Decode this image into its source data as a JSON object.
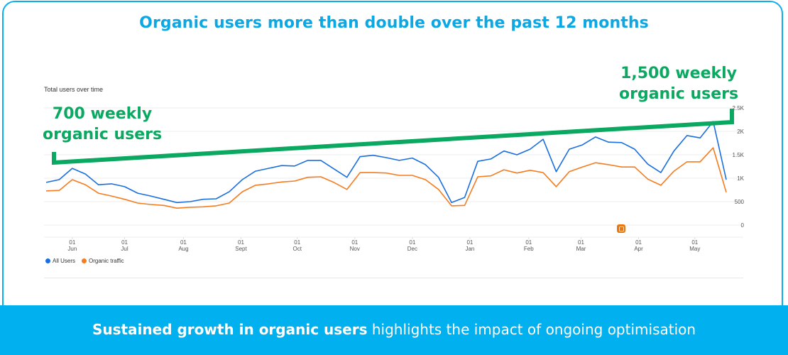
{
  "title": "Organic users more than double over the past 12 months",
  "chart_label": "Total users over time",
  "annotations": {
    "left": [
      "700 weekly",
      "organic users"
    ],
    "right": [
      "1,500 weekly",
      "organic users"
    ]
  },
  "banner": {
    "bold": "Sustained growth in organic users",
    "rest": " highlights the impact of ongoing optimisation"
  },
  "colors": {
    "accent": "#0ba8e4",
    "banner": "#00b0ef",
    "annotation_green": "#0aa860",
    "all_users": "#1a6fe0",
    "organic": "#f57c1f"
  },
  "chart_data": {
    "type": "line",
    "title": "Total users over time",
    "xlabel": "",
    "ylabel": "",
    "ylim": [
      0,
      2500
    ],
    "yticks": [
      "0",
      "500",
      "1K",
      "1.5K",
      "2K",
      "2.5K"
    ],
    "ytick_values": [
      0,
      500,
      1000,
      1500,
      2000,
      2500
    ],
    "grid": true,
    "legend_position": "bottom-left",
    "x_ticks": [
      {
        "day": "01",
        "month": "Jun",
        "index": 2
      },
      {
        "day": "01",
        "month": "Jul",
        "index": 6
      },
      {
        "day": "01",
        "month": "Aug",
        "index": 10.5
      },
      {
        "day": "01",
        "month": "Sept",
        "index": 14.9
      },
      {
        "day": "01",
        "month": "Oct",
        "index": 19.2
      },
      {
        "day": "01",
        "month": "Nov",
        "index": 23.6
      },
      {
        "day": "01",
        "month": "Dec",
        "index": 28
      },
      {
        "day": "01",
        "month": "Jan",
        "index": 32.4
      },
      {
        "day": "01",
        "month": "Feb",
        "index": 36.9
      },
      {
        "day": "01",
        "month": "Mar",
        "index": 40.9
      },
      {
        "day": "01",
        "month": "Apr",
        "index": 45.3
      },
      {
        "day": "01",
        "month": "May",
        "index": 49.6
      }
    ],
    "series": [
      {
        "name": "All Users",
        "color": "#1a6fe0",
        "values": [
          910,
          970,
          1210,
          1090,
          860,
          880,
          820,
          680,
          620,
          550,
          480,
          500,
          550,
          560,
          710,
          970,
          1150,
          1210,
          1270,
          1260,
          1380,
          1380,
          1200,
          1020,
          1460,
          1490,
          1440,
          1380,
          1430,
          1290,
          1020,
          480,
          590,
          1360,
          1410,
          1580,
          1500,
          1620,
          1830,
          1140,
          1620,
          1710,
          1880,
          1770,
          1760,
          1620,
          1300,
          1120,
          1580,
          1910,
          1860,
          2210,
          970
        ]
      },
      {
        "name": "Organic traffic",
        "color": "#f57c1f",
        "values": [
          730,
          740,
          970,
          860,
          680,
          620,
          550,
          470,
          440,
          420,
          360,
          380,
          390,
          410,
          470,
          710,
          850,
          880,
          920,
          940,
          1020,
          1030,
          910,
          760,
          1120,
          1120,
          1110,
          1060,
          1060,
          970,
          760,
          410,
          420,
          1030,
          1050,
          1180,
          1110,
          1170,
          1120,
          820,
          1140,
          1240,
          1330,
          1290,
          1240,
          1240,
          980,
          850,
          1150,
          1350,
          1350,
          1650,
          700
        ]
      }
    ],
    "annotation_trend": {
      "from": 700,
      "to": 1500,
      "unit": "weekly organic users"
    }
  }
}
